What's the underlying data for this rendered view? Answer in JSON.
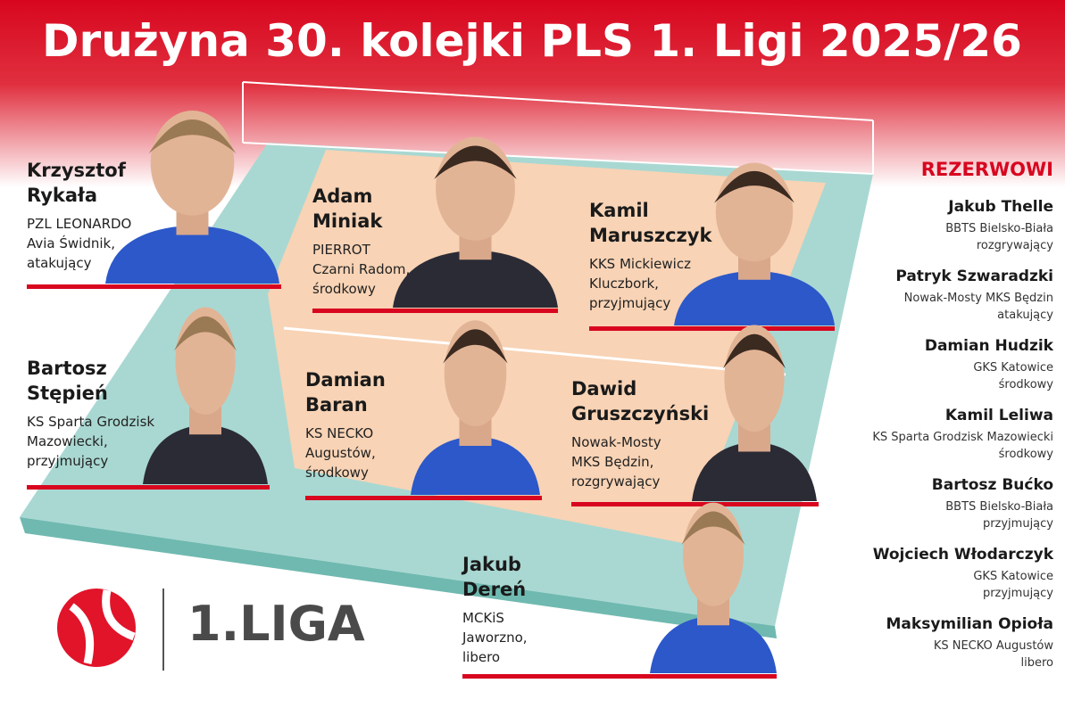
{
  "title": "Drużyna 30. kolejki PLS 1. Ligi 2025/26",
  "players": [
    {
      "name": [
        "Krzysztof",
        "Rykała"
      ],
      "info": [
        "PZL LEONARDO",
        "Avia Świdnik,",
        "atakujący"
      ]
    },
    {
      "name": [
        "Adam",
        "Miniak"
      ],
      "info": [
        "PIERROT",
        "Czarni Radom,",
        "środkowy"
      ]
    },
    {
      "name": [
        "Kamil",
        "Maruszczyk"
      ],
      "info": [
        "KKS Mickiewicz",
        "Kluczbork,",
        "przyjmujący"
      ]
    },
    {
      "name": [
        "Bartosz",
        "Stępień"
      ],
      "info": [
        "KS Sparta Grodzisk",
        "Mazowiecki,",
        "przyjmujący"
      ]
    },
    {
      "name": [
        "Damian",
        "Baran"
      ],
      "info": [
        "KS NECKO",
        "Augustów,",
        "środkowy"
      ]
    },
    {
      "name": [
        "Dawid",
        "Gruszczyński"
      ],
      "info": [
        "Nowak-Mosty",
        "MKS Będzin,",
        "rozgrywający"
      ]
    },
    {
      "name": [
        "Jakub",
        "Dereń"
      ],
      "info": [
        "MCKiS",
        "Jaworzno,",
        "libero"
      ]
    }
  ],
  "reserves_title": "REZERWOWI",
  "reserves": [
    {
      "name": "Jakub Thelle",
      "club": "BBTS Bielsko-Biała",
      "position": "rozgrywający"
    },
    {
      "name": "Patryk Szwaradzki",
      "club": "Nowak-Mosty MKS Będzin",
      "position": "atakujący"
    },
    {
      "name": "Damian Hudzik",
      "club": "GKS Katowice",
      "position": "środkowy"
    },
    {
      "name": "Kamil Leliwa",
      "club": "KS Sparta Grodzisk Mazowiecki",
      "position": "środkowy"
    },
    {
      "name": "Bartosz Bućko",
      "club": "BBTS Bielsko-Biała",
      "position": "przyjmujący"
    },
    {
      "name": "Wojciech Włodarczyk",
      "club": "GKS Katowice",
      "position": "przyjmujący"
    },
    {
      "name": "Maksymilian Opioła",
      "club": "KS NECKO Augustów",
      "position": "libero"
    }
  ],
  "logo_text": "1.LIGA"
}
